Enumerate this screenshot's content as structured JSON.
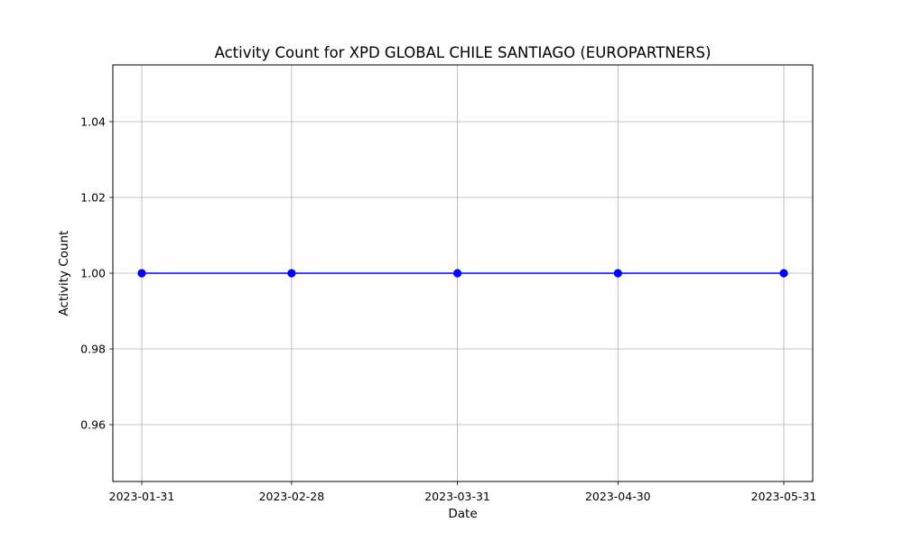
{
  "chart_data": {
    "type": "line",
    "title": "Activity Count for XPD GLOBAL CHILE SANTIAGO (EUROPARTNERS)",
    "xlabel": "Date",
    "ylabel": "Activity Count",
    "x": [
      "2023-01-31",
      "2023-02-28",
      "2023-03-31",
      "2023-04-30",
      "2023-05-31"
    ],
    "xticks": [
      "2023-01-31",
      "2023-02-28",
      "2023-03-31",
      "2023-04-30",
      "2023-05-31"
    ],
    "series": [
      {
        "values": [
          1,
          1,
          1,
          1,
          1
        ],
        "color": "#0000ff",
        "marker": "circle"
      }
    ],
    "ylim": [
      0.945,
      1.055
    ],
    "yticks": [
      "0.96",
      "0.98",
      "1.00",
      "1.02",
      "1.04"
    ],
    "grid": true,
    "legend": "none"
  }
}
